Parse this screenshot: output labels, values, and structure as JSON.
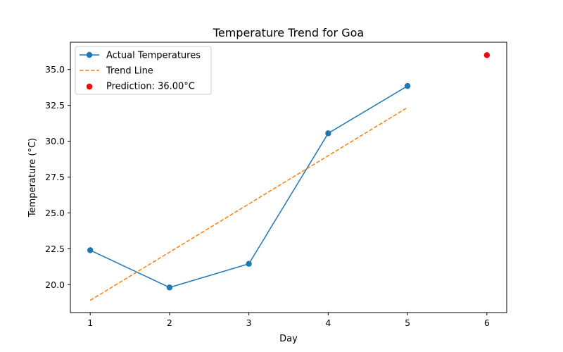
{
  "chart_data": {
    "type": "line",
    "title": "Temperature Trend for Goa",
    "xlabel": "Day",
    "ylabel": "Temperature (°C)",
    "xlim": [
      0.75,
      6.25
    ],
    "ylim": [
      18.05,
      36.9
    ],
    "xticks": [
      1,
      2,
      3,
      4,
      5,
      6
    ],
    "yticks": [
      20.0,
      22.5,
      25.0,
      27.5,
      30.0,
      32.5,
      35.0
    ],
    "xtick_labels": [
      "1",
      "2",
      "3",
      "4",
      "5",
      "6"
    ],
    "ytick_labels": [
      "20.0",
      "22.5",
      "25.0",
      "27.5",
      "30.0",
      "32.5",
      "35.0"
    ],
    "grid": false,
    "legend_position": "top-left",
    "series": [
      {
        "name": "Actual Temperatures",
        "kind": "line-marker",
        "color": "#1f77b4",
        "x": [
          1,
          2,
          3,
          4,
          5
        ],
        "y": [
          22.4,
          19.8,
          21.45,
          30.55,
          33.85
        ]
      },
      {
        "name": "Trend Line",
        "kind": "dashed-line",
        "color": "#ff7f0e",
        "x": [
          1,
          5
        ],
        "y": [
          18.9,
          32.35
        ]
      },
      {
        "name": "Prediction: 36.00°C",
        "kind": "scatter",
        "color": "#ff0000",
        "x": [
          6
        ],
        "y": [
          36.0
        ]
      }
    ]
  }
}
